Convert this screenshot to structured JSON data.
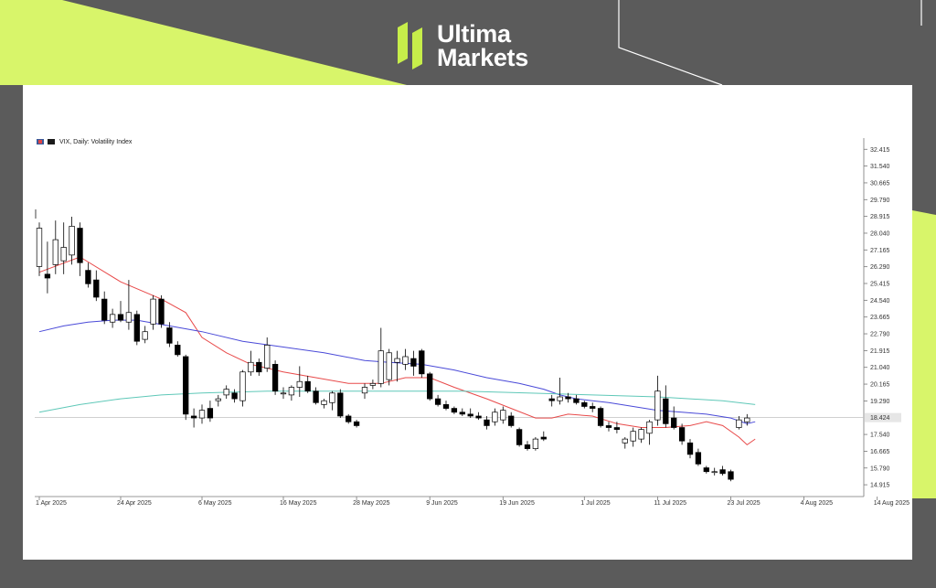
{
  "brand": {
    "line1": "Ultima",
    "line2": "Markets",
    "accent": "#d8f56a",
    "background": "#5b5b5b"
  },
  "chart_data": {
    "type": "candlestick",
    "title": "VIX, Daily:  Volatility Index",
    "y_ticks": [
      "32.415",
      "31.540",
      "30.665",
      "29.790",
      "28.915",
      "28.040",
      "27.165",
      "26.290",
      "25.415",
      "24.540",
      "23.665",
      "22.790",
      "21.915",
      "21.040",
      "20.165",
      "19.290",
      "17.540",
      "16.665",
      "15.790",
      "14.915"
    ],
    "ylim": [
      14.3,
      33.0
    ],
    "current_price": 18.42,
    "current_price_label": "18.424",
    "x_ticks": [
      "1 Apr 2025",
      "24 Apr 2025",
      "6 May 2025",
      "16 May 2025",
      "28 May 2025",
      "9 Jun 2025",
      "19 Jun 2025",
      "1 Jul 2025",
      "11 Jul 2025",
      "23 Jul 2025",
      "4 Aug 2025",
      "14 Aug 2025"
    ],
    "x_tick_bars": [
      0,
      10,
      20,
      30,
      39,
      48,
      57,
      67,
      76,
      85,
      94,
      103
    ],
    "grid": false,
    "candles": [
      {
        "o": 26.3,
        "h": 28.6,
        "l": 25.8,
        "c": 28.3
      },
      {
        "o": 25.9,
        "h": 27.6,
        "l": 24.9,
        "c": 25.7
      },
      {
        "o": 26.4,
        "h": 28.7,
        "l": 25.9,
        "c": 27.7
      },
      {
        "o": 26.6,
        "h": 28.6,
        "l": 25.9,
        "c": 27.3
      },
      {
        "o": 26.9,
        "h": 28.9,
        "l": 26.4,
        "c": 28.4
      },
      {
        "o": 28.3,
        "h": 28.6,
        "l": 25.8,
        "c": 26.5
      },
      {
        "o": 26.1,
        "h": 26.5,
        "l": 25.2,
        "c": 25.4
      },
      {
        "o": 25.6,
        "h": 26.1,
        "l": 24.5,
        "c": 24.7
      },
      {
        "o": 24.6,
        "h": 25.0,
        "l": 23.3,
        "c": 23.5
      },
      {
        "o": 23.4,
        "h": 24.1,
        "l": 23.1,
        "c": 23.8
      },
      {
        "o": 23.8,
        "h": 24.5,
        "l": 23.4,
        "c": 23.5
      },
      {
        "o": 23.4,
        "h": 25.6,
        "l": 23.0,
        "c": 23.9
      },
      {
        "o": 23.8,
        "h": 24.0,
        "l": 22.2,
        "c": 22.4
      },
      {
        "o": 22.5,
        "h": 23.2,
        "l": 22.3,
        "c": 22.9
      },
      {
        "o": 23.3,
        "h": 24.8,
        "l": 23.0,
        "c": 24.6
      },
      {
        "o": 24.6,
        "h": 24.8,
        "l": 23.1,
        "c": 23.3
      },
      {
        "o": 23.1,
        "h": 23.4,
        "l": 22.1,
        "c": 22.3
      },
      {
        "o": 22.2,
        "h": 22.4,
        "l": 21.6,
        "c": 21.7
      },
      {
        "o": 21.6,
        "h": 21.7,
        "l": 18.3,
        "c": 18.6
      },
      {
        "o": 18.5,
        "h": 18.9,
        "l": 17.9,
        "c": 18.4
      },
      {
        "o": 18.4,
        "h": 19.1,
        "l": 18.1,
        "c": 18.8
      },
      {
        "o": 18.9,
        "h": 19.3,
        "l": 18.2,
        "c": 18.4
      },
      {
        "o": 19.3,
        "h": 19.6,
        "l": 19.0,
        "c": 19.4
      },
      {
        "o": 19.6,
        "h": 20.1,
        "l": 19.4,
        "c": 19.9
      },
      {
        "o": 19.7,
        "h": 19.9,
        "l": 19.2,
        "c": 19.4
      },
      {
        "o": 19.3,
        "h": 20.9,
        "l": 19.0,
        "c": 20.8
      },
      {
        "o": 20.8,
        "h": 21.9,
        "l": 20.6,
        "c": 21.3
      },
      {
        "o": 21.3,
        "h": 21.5,
        "l": 20.6,
        "c": 20.8
      },
      {
        "o": 21.0,
        "h": 22.6,
        "l": 20.8,
        "c": 22.2
      },
      {
        "o": 21.2,
        "h": 21.4,
        "l": 19.6,
        "c": 19.8
      },
      {
        "o": 19.7,
        "h": 20.0,
        "l": 19.4,
        "c": 19.7
      },
      {
        "o": 19.6,
        "h": 20.1,
        "l": 19.3,
        "c": 20.0
      },
      {
        "o": 20.0,
        "h": 21.1,
        "l": 19.5,
        "c": 20.3
      },
      {
        "o": 20.3,
        "h": 20.6,
        "l": 19.7,
        "c": 19.8
      },
      {
        "o": 19.8,
        "h": 20.0,
        "l": 19.1,
        "c": 19.2
      },
      {
        "o": 19.1,
        "h": 19.4,
        "l": 18.9,
        "c": 19.3
      },
      {
        "o": 19.2,
        "h": 19.8,
        "l": 18.8,
        "c": 19.7
      },
      {
        "o": 19.7,
        "h": 19.9,
        "l": 18.4,
        "c": 18.5
      },
      {
        "o": 18.5,
        "h": 18.6,
        "l": 18.1,
        "c": 18.2
      },
      {
        "o": 18.2,
        "h": 18.3,
        "l": 17.9,
        "c": 18.0
      },
      {
        "o": 19.7,
        "h": 20.2,
        "l": 19.4,
        "c": 20.0
      },
      {
        "o": 20.1,
        "h": 20.4,
        "l": 19.9,
        "c": 20.2
      },
      {
        "o": 20.2,
        "h": 23.1,
        "l": 20.0,
        "c": 21.9
      },
      {
        "o": 20.4,
        "h": 22.0,
        "l": 20.1,
        "c": 21.8
      },
      {
        "o": 21.3,
        "h": 21.9,
        "l": 20.3,
        "c": 21.5
      },
      {
        "o": 21.2,
        "h": 22.0,
        "l": 20.9,
        "c": 21.6
      },
      {
        "o": 21.5,
        "h": 21.9,
        "l": 20.6,
        "c": 21.1
      },
      {
        "o": 21.9,
        "h": 22.0,
        "l": 20.5,
        "c": 20.7
      },
      {
        "o": 20.7,
        "h": 20.8,
        "l": 19.3,
        "c": 19.4
      },
      {
        "o": 19.4,
        "h": 19.6,
        "l": 19.0,
        "c": 19.1
      },
      {
        "o": 19.1,
        "h": 19.3,
        "l": 18.8,
        "c": 18.9
      },
      {
        "o": 18.9,
        "h": 19.0,
        "l": 18.6,
        "c": 18.7
      },
      {
        "o": 18.7,
        "h": 18.9,
        "l": 18.5,
        "c": 18.6
      },
      {
        "o": 18.6,
        "h": 18.9,
        "l": 18.4,
        "c": 18.5
      },
      {
        "o": 18.5,
        "h": 18.7,
        "l": 18.3,
        "c": 18.4
      },
      {
        "o": 18.3,
        "h": 18.5,
        "l": 17.8,
        "c": 18.0
      },
      {
        "o": 18.2,
        "h": 18.9,
        "l": 18.0,
        "c": 18.7
      },
      {
        "o": 18.3,
        "h": 19.0,
        "l": 18.1,
        "c": 18.8
      },
      {
        "o": 18.5,
        "h": 18.7,
        "l": 17.9,
        "c": 18.0
      },
      {
        "o": 17.8,
        "h": 17.9,
        "l": 16.9,
        "c": 17.0
      },
      {
        "o": 17.0,
        "h": 17.2,
        "l": 16.7,
        "c": 16.8
      },
      {
        "o": 16.8,
        "h": 17.4,
        "l": 16.7,
        "c": 17.3
      },
      {
        "o": 17.4,
        "h": 17.7,
        "l": 17.2,
        "c": 17.3
      },
      {
        "o": 19.4,
        "h": 19.6,
        "l": 19.0,
        "c": 19.3
      },
      {
        "o": 19.3,
        "h": 20.5,
        "l": 19.1,
        "c": 19.5
      },
      {
        "o": 19.5,
        "h": 19.7,
        "l": 19.2,
        "c": 19.4
      },
      {
        "o": 19.4,
        "h": 19.6,
        "l": 19.1,
        "c": 19.2
      },
      {
        "o": 19.2,
        "h": 19.3,
        "l": 18.9,
        "c": 19.0
      },
      {
        "o": 19.0,
        "h": 19.2,
        "l": 18.7,
        "c": 18.9
      },
      {
        "o": 18.9,
        "h": 19.0,
        "l": 17.9,
        "c": 18.0
      },
      {
        "o": 18.0,
        "h": 18.2,
        "l": 17.7,
        "c": 17.9
      },
      {
        "o": 17.9,
        "h": 18.2,
        "l": 17.6,
        "c": 17.8
      },
      {
        "o": 17.1,
        "h": 17.4,
        "l": 16.8,
        "c": 17.3
      },
      {
        "o": 17.2,
        "h": 17.9,
        "l": 16.9,
        "c": 17.7
      },
      {
        "o": 17.3,
        "h": 17.9,
        "l": 17.1,
        "c": 17.8
      },
      {
        "o": 17.6,
        "h": 18.3,
        "l": 17.0,
        "c": 18.2
      },
      {
        "o": 18.3,
        "h": 20.6,
        "l": 18.0,
        "c": 19.8
      },
      {
        "o": 19.4,
        "h": 20.1,
        "l": 17.9,
        "c": 18.1
      },
      {
        "o": 18.4,
        "h": 19.0,
        "l": 17.8,
        "c": 17.9
      },
      {
        "o": 17.9,
        "h": 18.1,
        "l": 17.0,
        "c": 17.2
      },
      {
        "o": 17.1,
        "h": 17.3,
        "l": 16.3,
        "c": 16.5
      },
      {
        "o": 16.6,
        "h": 16.8,
        "l": 15.9,
        "c": 16.0
      },
      {
        "o": 15.8,
        "h": 15.9,
        "l": 15.5,
        "c": 15.6
      },
      {
        "o": 15.6,
        "h": 15.8,
        "l": 15.4,
        "c": 15.6
      },
      {
        "o": 15.7,
        "h": 15.9,
        "l": 15.4,
        "c": 15.5
      },
      {
        "o": 15.6,
        "h": 15.7,
        "l": 15.1,
        "c": 15.2
      },
      {
        "o": 17.9,
        "h": 18.5,
        "l": 17.8,
        "c": 18.3
      },
      {
        "o": 18.2,
        "h": 18.6,
        "l": 18.0,
        "c": 18.4
      }
    ],
    "series": [
      {
        "color": "#e84a4a",
        "points": [
          [
            0,
            26.0
          ],
          [
            5,
            26.8
          ],
          [
            10,
            25.5
          ],
          [
            15,
            24.6
          ],
          [
            18,
            23.9
          ],
          [
            20,
            22.6
          ],
          [
            23,
            21.8
          ],
          [
            26,
            21.2
          ],
          [
            30,
            20.8
          ],
          [
            34,
            20.5
          ],
          [
            38,
            20.2
          ],
          [
            42,
            20.2
          ],
          [
            45,
            20.5
          ],
          [
            48,
            20.5
          ],
          [
            51,
            20.0
          ],
          [
            55,
            19.4
          ],
          [
            58,
            18.9
          ],
          [
            61,
            18.4
          ],
          [
            63,
            18.4
          ],
          [
            65,
            18.6
          ],
          [
            68,
            18.5
          ],
          [
            71,
            18.1
          ],
          [
            74,
            17.9
          ],
          [
            77,
            17.9
          ],
          [
            80,
            18.0
          ],
          [
            82,
            18.2
          ],
          [
            84,
            18.0
          ],
          [
            86,
            17.4
          ],
          [
            87,
            17.0
          ],
          [
            88,
            17.3
          ]
        ]
      },
      {
        "color": "#4a4ad8",
        "points": [
          [
            0,
            22.9
          ],
          [
            3,
            23.2
          ],
          [
            6,
            23.4
          ],
          [
            9,
            23.5
          ],
          [
            12,
            23.5
          ],
          [
            16,
            23.2
          ],
          [
            20,
            22.9
          ],
          [
            25,
            22.4
          ],
          [
            30,
            22.1
          ],
          [
            35,
            21.8
          ],
          [
            40,
            21.4
          ],
          [
            43,
            21.3
          ],
          [
            47,
            21.2
          ],
          [
            51,
            20.9
          ],
          [
            55,
            20.5
          ],
          [
            59,
            20.2
          ],
          [
            62,
            19.9
          ],
          [
            64,
            19.6
          ],
          [
            66,
            19.4
          ],
          [
            68,
            19.3
          ],
          [
            70,
            19.2
          ],
          [
            73,
            19.0
          ],
          [
            76,
            18.8
          ],
          [
            79,
            18.7
          ],
          [
            82,
            18.6
          ],
          [
            85,
            18.4
          ],
          [
            87,
            18.1
          ],
          [
            88,
            18.2
          ]
        ]
      },
      {
        "color": "#5fc8b8",
        "points": [
          [
            0,
            18.7
          ],
          [
            5,
            19.1
          ],
          [
            10,
            19.4
          ],
          [
            15,
            19.6
          ],
          [
            20,
            19.7
          ],
          [
            28,
            19.8
          ],
          [
            36,
            19.8
          ],
          [
            44,
            19.8
          ],
          [
            52,
            19.8
          ],
          [
            60,
            19.7
          ],
          [
            68,
            19.6
          ],
          [
            76,
            19.5
          ],
          [
            84,
            19.3
          ],
          [
            88,
            19.1
          ]
        ]
      }
    ]
  }
}
